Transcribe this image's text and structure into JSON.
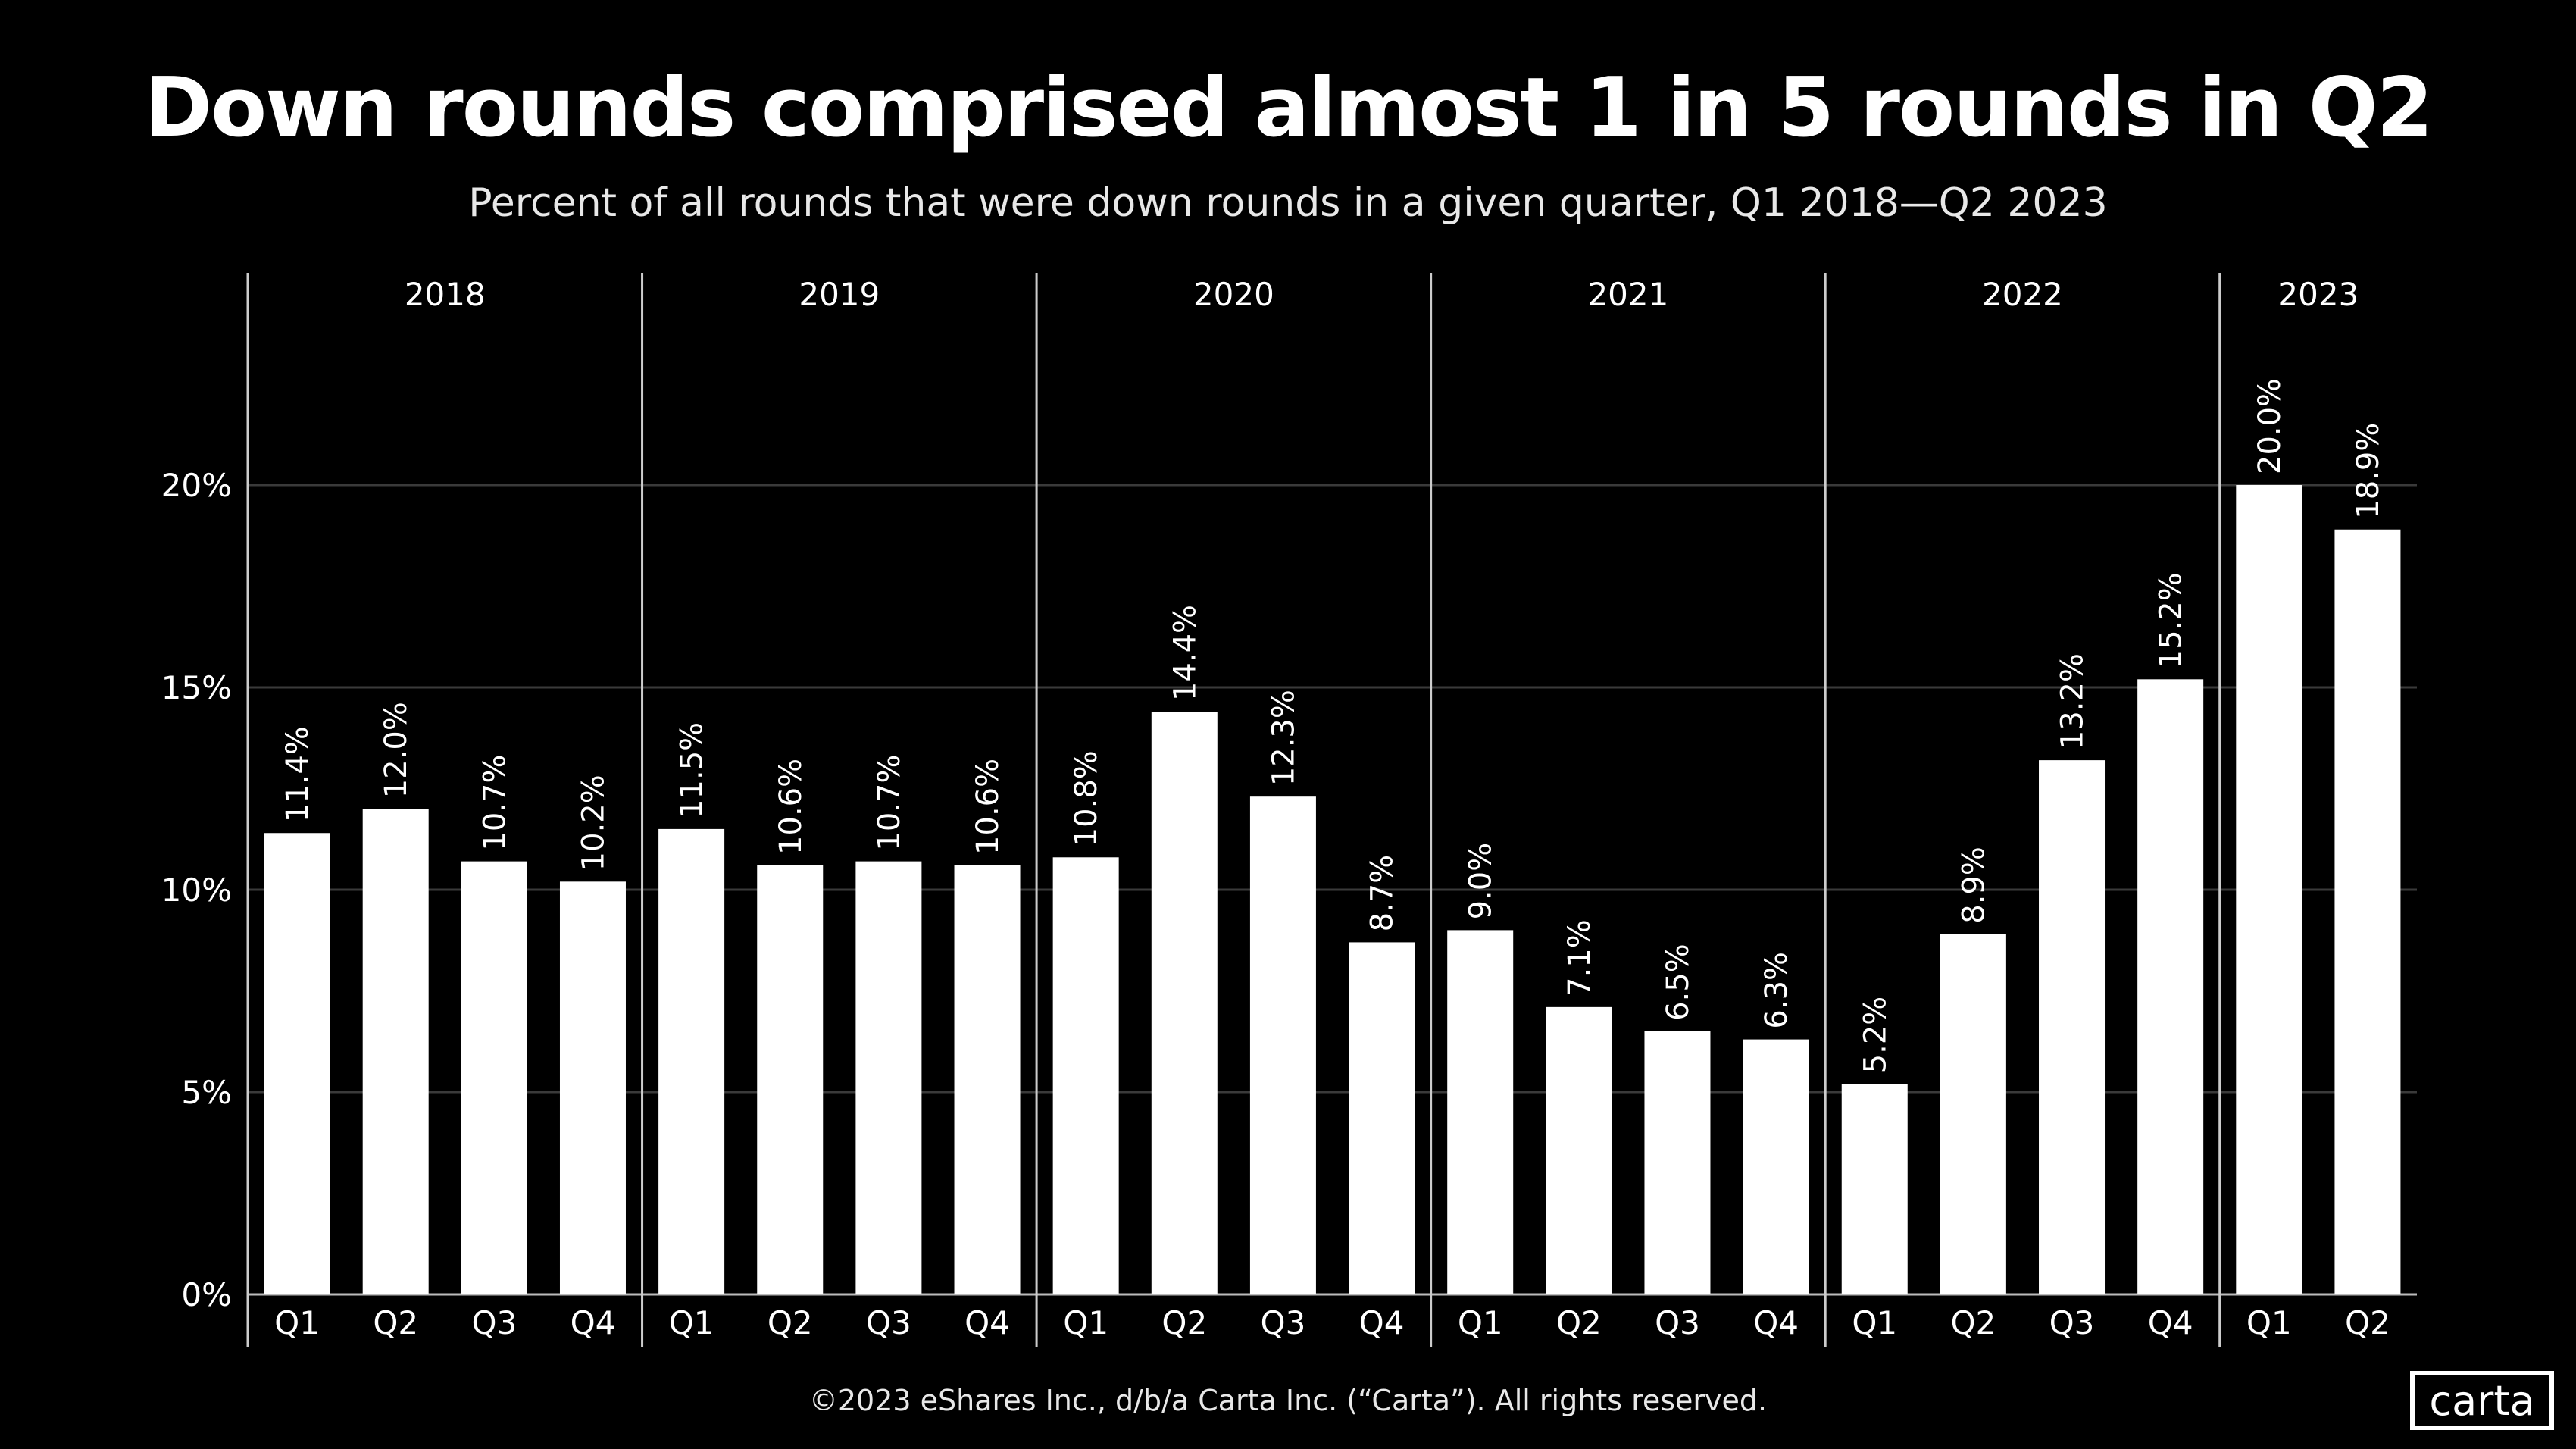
{
  "chart_data": {
    "type": "bar",
    "title": "Down rounds comprised almost 1 in 5 rounds in Q2",
    "subtitle": "Percent of all rounds that were down rounds in a given quarter, Q1 2018—Q2 2023",
    "xlabel": "",
    "ylabel": "",
    "ylim": [
      0,
      25
    ],
    "yticks": [
      0,
      5,
      10,
      15,
      20
    ],
    "ytick_labels": [
      "0%",
      "5%",
      "10%",
      "15%",
      "20%"
    ],
    "grid": true,
    "bar_color": "#ffffff",
    "background": "#000000",
    "groups": [
      {
        "year": "2018",
        "quarters": [
          "Q1",
          "Q2",
          "Q3",
          "Q4"
        ],
        "values": [
          11.4,
          12.0,
          10.7,
          10.2
        ],
        "labels": [
          "11.4%",
          "12.0%",
          "10.7%",
          "10.2%"
        ]
      },
      {
        "year": "2019",
        "quarters": [
          "Q1",
          "Q2",
          "Q3",
          "Q4"
        ],
        "values": [
          11.5,
          10.6,
          10.7,
          10.6
        ],
        "labels": [
          "11.5%",
          "10.6%",
          "10.7%",
          "10.6%"
        ]
      },
      {
        "year": "2020",
        "quarters": [
          "Q1",
          "Q2",
          "Q3",
          "Q4"
        ],
        "values": [
          10.8,
          14.4,
          12.3,
          8.7
        ],
        "labels": [
          "10.8%",
          "14.4%",
          "12.3%",
          "8.7%"
        ]
      },
      {
        "year": "2021",
        "quarters": [
          "Q1",
          "Q2",
          "Q3",
          "Q4"
        ],
        "values": [
          9.0,
          7.1,
          6.5,
          6.3
        ],
        "labels": [
          "9.0%",
          "7.1%",
          "6.5%",
          "6.3%"
        ]
      },
      {
        "year": "2022",
        "quarters": [
          "Q1",
          "Q2",
          "Q3",
          "Q4"
        ],
        "values": [
          5.2,
          8.9,
          13.2,
          15.2
        ],
        "labels": [
          "5.2%",
          "8.9%",
          "13.2%",
          "15.2%"
        ]
      },
      {
        "year": "2023",
        "quarters": [
          "Q1",
          "Q2"
        ],
        "values": [
          20.0,
          18.9
        ],
        "labels": [
          "20.0%",
          "18.9%"
        ]
      }
    ]
  },
  "footer": "©2023 eShares Inc., d/b/a Carta Inc. (“Carta”). All rights reserved.",
  "logo": "carta"
}
